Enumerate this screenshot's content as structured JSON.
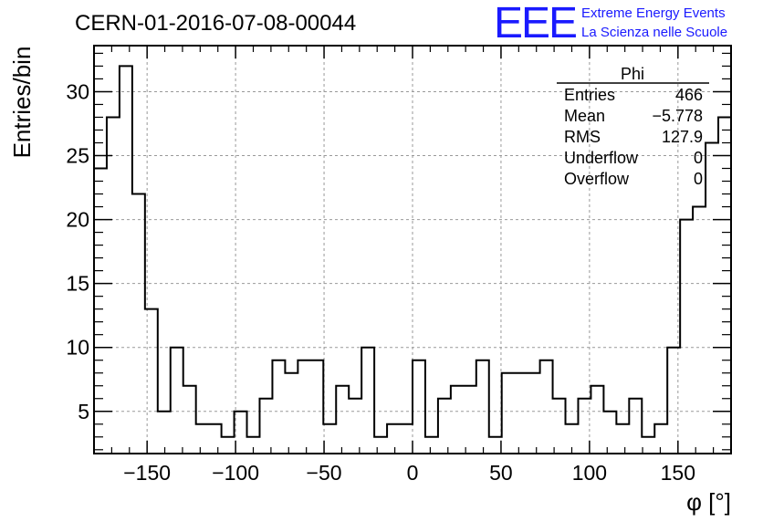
{
  "run_title": "CERN-01-2016-07-08-00044",
  "logo": {
    "mark": "EEE",
    "line1": "Extreme Energy Events",
    "line2": "La Scienza nelle Scuole",
    "color": "#1a1aff"
  },
  "stats": {
    "name": "Phi",
    "rows": [
      {
        "label": "Entries",
        "value": "466"
      },
      {
        "label": "Mean",
        "value": "−5.778"
      },
      {
        "label": "RMS",
        "value": "127.9"
      },
      {
        "label": "Underflow",
        "value": "0"
      },
      {
        "label": "Overflow",
        "value": "0"
      }
    ]
  },
  "chart_data": {
    "type": "histogram",
    "xlabel": "φ [°]",
    "ylabel": "Entries/bin",
    "xlim": [
      -180,
      180
    ],
    "ylim": [
      1.7,
      33.6
    ],
    "grid": true,
    "bin_edges_start": -180,
    "bin_width": 7.2,
    "values": [
      24,
      28,
      32,
      22,
      13,
      5,
      10,
      7,
      4,
      4,
      3,
      5,
      3,
      6,
      9,
      8,
      9,
      9,
      4,
      7,
      6,
      10,
      3,
      4,
      4,
      9,
      3,
      6,
      7,
      7,
      9,
      3,
      8,
      8,
      8,
      9,
      6,
      4,
      6,
      7,
      5,
      4,
      6,
      3,
      4,
      10,
      20,
      21,
      26,
      28
    ],
    "xticks": [
      {
        "v": -150,
        "label": "−150"
      },
      {
        "v": -100,
        "label": "−100"
      },
      {
        "v": -50,
        "label": "−50"
      },
      {
        "v": 0,
        "label": "0"
      },
      {
        "v": 50,
        "label": "50"
      },
      {
        "v": 100,
        "label": "100"
      },
      {
        "v": 150,
        "label": "150"
      }
    ],
    "yticks": [
      {
        "v": 5,
        "label": "5"
      },
      {
        "v": 10,
        "label": "10"
      },
      {
        "v": 15,
        "label": "15"
      },
      {
        "v": 20,
        "label": "20"
      },
      {
        "v": 25,
        "label": "25"
      },
      {
        "v": 30,
        "label": "30"
      }
    ]
  }
}
